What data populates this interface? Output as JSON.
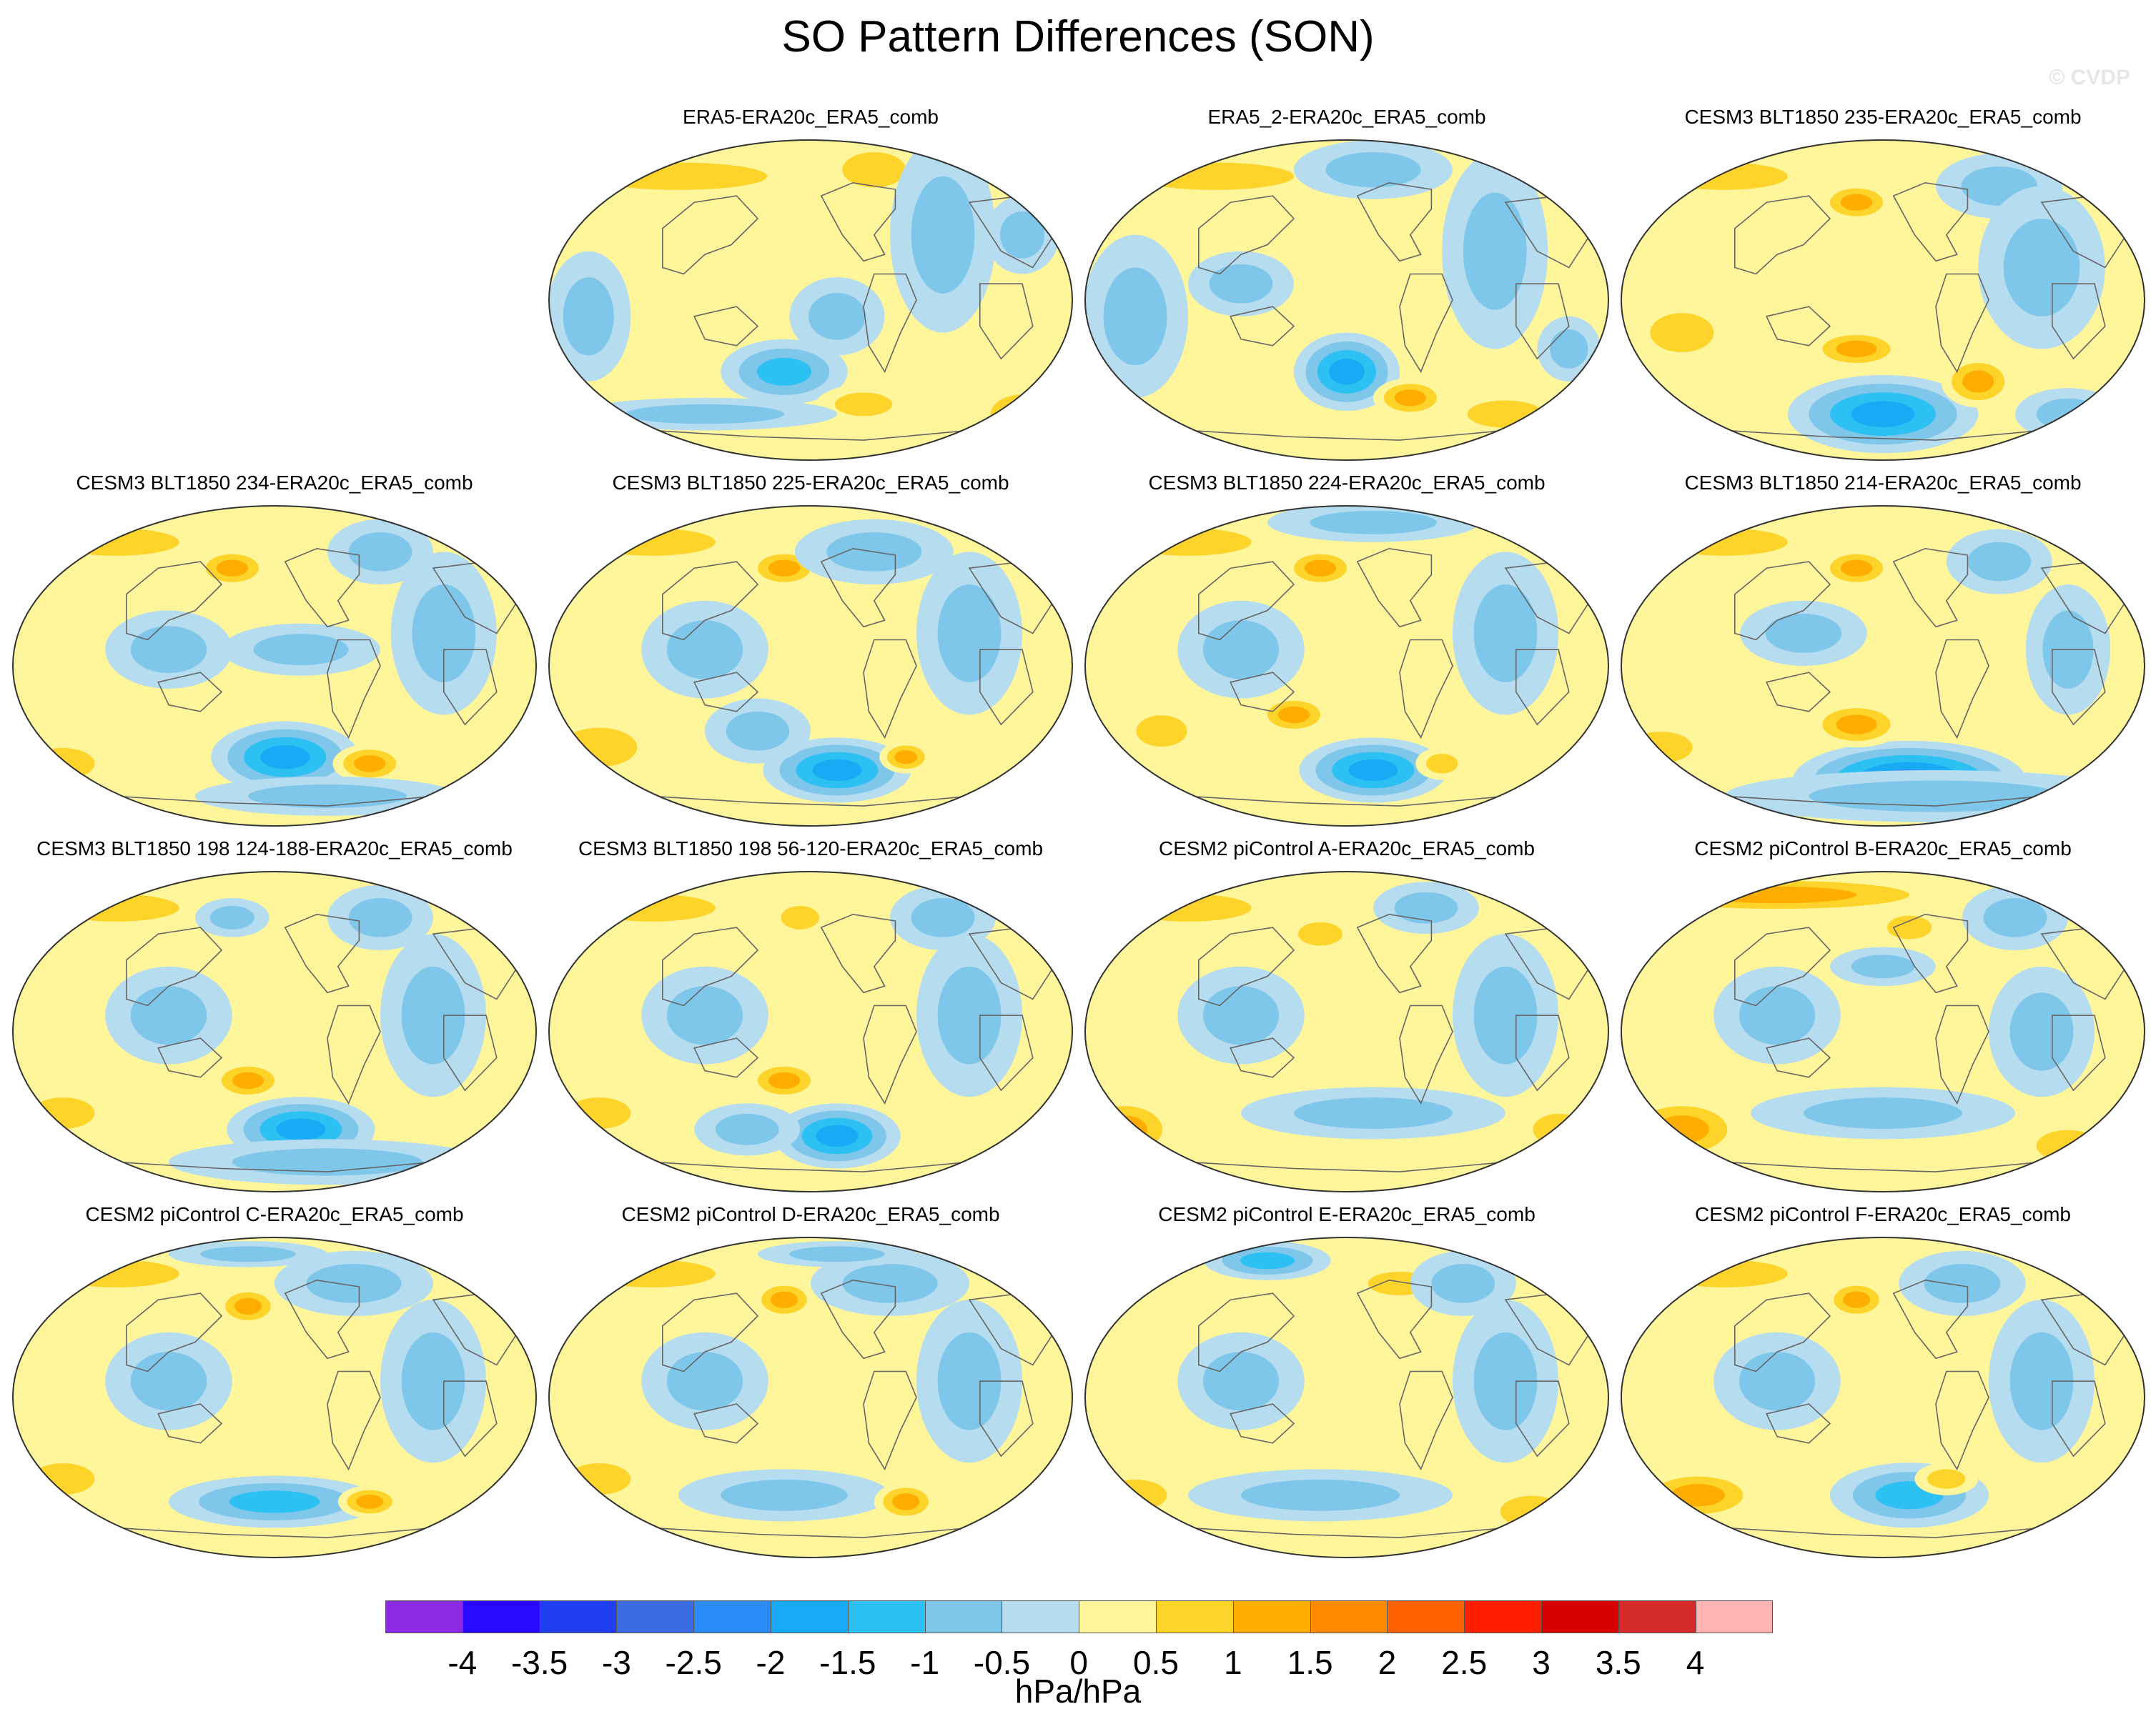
{
  "title": "SO Pattern Differences (SON)",
  "watermark": "© CVDP",
  "panels": [
    {
      "title": "ERA5-ERA20c_ERA5_comb",
      "blobs": [
        [
          0.25,
          0.12,
          0.28,
          0.07,
          1.0
        ],
        [
          0.62,
          0.1,
          0.1,
          0.09,
          1.0
        ],
        [
          0.55,
          0.55,
          0.09,
          0.12,
          -0.6
        ],
        [
          0.45,
          0.72,
          0.12,
          0.1,
          -1.2
        ],
        [
          0.6,
          0.82,
          0.09,
          0.06,
          1.0
        ],
        [
          0.75,
          0.3,
          0.1,
          0.3,
          -0.6
        ],
        [
          0.08,
          0.55,
          0.08,
          0.2,
          -0.6
        ],
        [
          0.9,
          0.85,
          0.1,
          0.1,
          1.0
        ],
        [
          0.3,
          0.85,
          0.25,
          0.05,
          -0.6
        ],
        [
          0.9,
          0.3,
          0.07,
          0.12,
          -0.6
        ]
      ]
    },
    {
      "title": "ERA5_2-ERA20c_ERA5_comb",
      "blobs": [
        [
          0.25,
          0.12,
          0.25,
          0.07,
          1.0
        ],
        [
          0.55,
          0.1,
          0.15,
          0.09,
          -0.8
        ],
        [
          0.5,
          0.72,
          0.1,
          0.12,
          -1.8
        ],
        [
          0.62,
          0.8,
          0.07,
          0.06,
          1.2
        ],
        [
          0.78,
          0.35,
          0.1,
          0.3,
          -0.6
        ],
        [
          0.1,
          0.55,
          0.1,
          0.25,
          -0.6
        ],
        [
          0.8,
          0.85,
          0.12,
          0.07,
          1.0
        ],
        [
          0.3,
          0.45,
          0.1,
          0.1,
          -0.6
        ],
        [
          0.92,
          0.65,
          0.06,
          0.1,
          -0.6
        ]
      ]
    },
    {
      "title": "CESM3 BLT1850 235-ERA20c_ERA5_comb",
      "blobs": [
        [
          0.2,
          0.12,
          0.2,
          0.07,
          1.0
        ],
        [
          0.45,
          0.2,
          0.07,
          0.06,
          1.2
        ],
        [
          0.72,
          0.15,
          0.12,
          0.1,
          -0.8
        ],
        [
          0.5,
          0.85,
          0.18,
          0.12,
          -1.8
        ],
        [
          0.45,
          0.65,
          0.09,
          0.06,
          1.2
        ],
        [
          0.68,
          0.75,
          0.07,
          0.08,
          1.2
        ],
        [
          0.12,
          0.6,
          0.1,
          0.1,
          1.0
        ],
        [
          0.8,
          0.4,
          0.12,
          0.25,
          -0.6
        ],
        [
          0.85,
          0.85,
          0.1,
          0.08,
          -0.6
        ]
      ]
    },
    {
      "title": "CESM3 BLT1850 234-ERA20c_ERA5_comb",
      "blobs": [
        [
          0.2,
          0.12,
          0.2,
          0.07,
          1.0
        ],
        [
          0.42,
          0.2,
          0.07,
          0.06,
          1.2
        ],
        [
          0.7,
          0.15,
          0.1,
          0.1,
          -0.8
        ],
        [
          0.52,
          0.78,
          0.14,
          0.11,
          -1.8
        ],
        [
          0.68,
          0.8,
          0.07,
          0.06,
          1.2
        ],
        [
          0.1,
          0.8,
          0.1,
          0.08,
          1.0
        ],
        [
          0.3,
          0.45,
          0.12,
          0.12,
          -0.6
        ],
        [
          0.82,
          0.4,
          0.1,
          0.25,
          -0.6
        ],
        [
          0.55,
          0.45,
          0.15,
          0.08,
          -0.6
        ],
        [
          0.6,
          0.9,
          0.25,
          0.06,
          -0.6
        ]
      ]
    },
    {
      "title": "CESM3 BLT1850 225-ERA20c_ERA5_comb",
      "blobs": [
        [
          0.2,
          0.12,
          0.2,
          0.07,
          1.0
        ],
        [
          0.45,
          0.2,
          0.07,
          0.06,
          1.2
        ],
        [
          0.62,
          0.15,
          0.15,
          0.1,
          -0.6
        ],
        [
          0.55,
          0.82,
          0.14,
          0.1,
          -1.8
        ],
        [
          0.68,
          0.78,
          0.05,
          0.05,
          1.2
        ],
        [
          0.1,
          0.75,
          0.12,
          0.1,
          1.0
        ],
        [
          0.3,
          0.45,
          0.12,
          0.15,
          -0.6
        ],
        [
          0.8,
          0.4,
          0.1,
          0.25,
          -0.6
        ],
        [
          0.4,
          0.7,
          0.1,
          0.1,
          -0.6
        ]
      ]
    },
    {
      "title": "CESM3 BLT1850 224-ERA20c_ERA5_comb",
      "blobs": [
        [
          0.2,
          0.12,
          0.2,
          0.07,
          1.0
        ],
        [
          0.45,
          0.2,
          0.07,
          0.06,
          1.2
        ],
        [
          0.55,
          0.06,
          0.2,
          0.06,
          -0.8
        ],
        [
          0.55,
          0.82,
          0.14,
          0.1,
          -1.8
        ],
        [
          0.4,
          0.65,
          0.07,
          0.06,
          1.2
        ],
        [
          0.68,
          0.8,
          0.05,
          0.05,
          1.0
        ],
        [
          0.15,
          0.7,
          0.08,
          0.08,
          1.0
        ],
        [
          0.3,
          0.45,
          0.12,
          0.15,
          -0.6
        ],
        [
          0.8,
          0.4,
          0.1,
          0.25,
          -0.6
        ]
      ]
    },
    {
      "title": "CESM3 BLT1850 214-ERA20c_ERA5_comb",
      "blobs": [
        [
          0.2,
          0.12,
          0.2,
          0.07,
          1.0
        ],
        [
          0.45,
          0.2,
          0.07,
          0.06,
          1.2
        ],
        [
          0.72,
          0.18,
          0.1,
          0.1,
          -0.8
        ],
        [
          0.55,
          0.85,
          0.22,
          0.12,
          -2.2
        ],
        [
          0.45,
          0.68,
          0.09,
          0.07,
          1.5
        ],
        [
          0.08,
          0.75,
          0.1,
          0.08,
          1.0
        ],
        [
          0.6,
          0.9,
          0.4,
          0.08,
          -0.6
        ],
        [
          0.85,
          0.45,
          0.08,
          0.2,
          -0.6
        ],
        [
          0.35,
          0.4,
          0.12,
          0.1,
          -0.6
        ]
      ]
    },
    {
      "title": "CESM3 BLT1850 198 124-188-ERA20c_ERA5_comb",
      "blobs": [
        [
          0.2,
          0.12,
          0.2,
          0.07,
          1.0
        ],
        [
          0.42,
          0.15,
          0.07,
          0.06,
          -0.6
        ],
        [
          0.7,
          0.15,
          0.1,
          0.1,
          -0.6
        ],
        [
          0.55,
          0.8,
          0.14,
          0.1,
          -1.8
        ],
        [
          0.45,
          0.65,
          0.07,
          0.06,
          1.2
        ],
        [
          0.1,
          0.75,
          0.1,
          0.08,
          1.0
        ],
        [
          0.3,
          0.45,
          0.12,
          0.15,
          -0.6
        ],
        [
          0.8,
          0.45,
          0.1,
          0.25,
          -0.6
        ],
        [
          0.6,
          0.9,
          0.3,
          0.07,
          -0.6
        ]
      ]
    },
    {
      "title": "CESM3 BLT1850 198 56-120-ERA20c_ERA5_comb",
      "blobs": [
        [
          0.2,
          0.12,
          0.2,
          0.07,
          1.0
        ],
        [
          0.48,
          0.15,
          0.06,
          0.06,
          1.0
        ],
        [
          0.75,
          0.15,
          0.1,
          0.1,
          -0.8
        ],
        [
          0.55,
          0.82,
          0.12,
          0.1,
          -2.0
        ],
        [
          0.45,
          0.65,
          0.07,
          0.06,
          1.5
        ],
        [
          0.1,
          0.75,
          0.1,
          0.08,
          1.0
        ],
        [
          0.3,
          0.45,
          0.12,
          0.15,
          -0.6
        ],
        [
          0.8,
          0.45,
          0.1,
          0.25,
          -0.6
        ],
        [
          0.38,
          0.8,
          0.1,
          0.08,
          -0.6
        ]
      ]
    },
    {
      "title": "CESM2 piControl A-ERA20c_ERA5_comb",
      "blobs": [
        [
          0.2,
          0.12,
          0.2,
          0.07,
          1.0
        ],
        [
          0.45,
          0.2,
          0.07,
          0.06,
          1.0
        ],
        [
          0.65,
          0.12,
          0.1,
          0.08,
          -0.6
        ],
        [
          0.55,
          0.75,
          0.25,
          0.08,
          -0.8
        ],
        [
          0.08,
          0.8,
          0.1,
          0.1,
          1.2
        ],
        [
          0.3,
          0.45,
          0.12,
          0.15,
          -0.6
        ],
        [
          0.8,
          0.45,
          0.1,
          0.25,
          -0.6
        ],
        [
          0.9,
          0.8,
          0.08,
          0.08,
          1.0
        ]
      ]
    },
    {
      "title": "CESM2 piControl B-ERA20c_ERA5_comb",
      "blobs": [
        [
          0.3,
          0.08,
          0.35,
          0.06,
          1.2
        ],
        [
          0.55,
          0.18,
          0.07,
          0.06,
          1.0
        ],
        [
          0.75,
          0.15,
          0.1,
          0.1,
          -0.6
        ],
        [
          0.5,
          0.75,
          0.25,
          0.08,
          -0.8
        ],
        [
          0.12,
          0.8,
          0.12,
          0.1,
          1.5
        ],
        [
          0.3,
          0.45,
          0.12,
          0.15,
          -0.6
        ],
        [
          0.8,
          0.5,
          0.1,
          0.2,
          -0.6
        ],
        [
          0.85,
          0.85,
          0.1,
          0.08,
          1.0
        ],
        [
          0.5,
          0.3,
          0.1,
          0.06,
          -0.6
        ]
      ]
    },
    {
      "title": "CESM2 piControl C-ERA20c_ERA5_comb",
      "blobs": [
        [
          0.2,
          0.12,
          0.2,
          0.07,
          1.0
        ],
        [
          0.45,
          0.22,
          0.06,
          0.06,
          1.2
        ],
        [
          0.65,
          0.15,
          0.15,
          0.1,
          -0.6
        ],
        [
          0.5,
          0.82,
          0.2,
          0.08,
          -1.5
        ],
        [
          0.68,
          0.82,
          0.06,
          0.05,
          1.2
        ],
        [
          0.1,
          0.75,
          0.1,
          0.08,
          1.0
        ],
        [
          0.3,
          0.45,
          0.12,
          0.15,
          -0.6
        ],
        [
          0.8,
          0.45,
          0.1,
          0.25,
          -0.6
        ],
        [
          0.45,
          0.06,
          0.15,
          0.04,
          -0.6
        ]
      ]
    },
    {
      "title": "CESM2 piControl D-ERA20c_ERA5_comb",
      "blobs": [
        [
          0.2,
          0.12,
          0.2,
          0.07,
          1.0
        ],
        [
          0.45,
          0.2,
          0.06,
          0.06,
          1.2
        ],
        [
          0.65,
          0.15,
          0.15,
          0.1,
          -0.6
        ],
        [
          0.45,
          0.8,
          0.2,
          0.08,
          -0.8
        ],
        [
          0.68,
          0.82,
          0.06,
          0.06,
          1.2
        ],
        [
          0.1,
          0.75,
          0.1,
          0.08,
          1.0
        ],
        [
          0.3,
          0.45,
          0.12,
          0.15,
          -0.6
        ],
        [
          0.8,
          0.45,
          0.1,
          0.25,
          -0.6
        ],
        [
          0.55,
          0.06,
          0.15,
          0.04,
          -0.6
        ]
      ]
    },
    {
      "title": "CESM2 piControl E-ERA20c_ERA5_comb",
      "blobs": [
        [
          0.35,
          0.08,
          0.12,
          0.06,
          -1.2
        ],
        [
          0.6,
          0.15,
          0.1,
          0.06,
          1.0
        ],
        [
          0.72,
          0.15,
          0.1,
          0.1,
          -0.6
        ],
        [
          0.45,
          0.8,
          0.25,
          0.08,
          -1.0
        ],
        [
          0.1,
          0.8,
          0.1,
          0.08,
          1.0
        ],
        [
          0.3,
          0.45,
          0.12,
          0.15,
          -0.6
        ],
        [
          0.8,
          0.45,
          0.1,
          0.25,
          -0.6
        ],
        [
          0.85,
          0.85,
          0.1,
          0.08,
          1.0
        ]
      ]
    },
    {
      "title": "CESM2 piControl F-ERA20c_ERA5_comb",
      "blobs": [
        [
          0.2,
          0.12,
          0.2,
          0.07,
          1.0
        ],
        [
          0.45,
          0.2,
          0.06,
          0.06,
          1.2
        ],
        [
          0.65,
          0.15,
          0.12,
          0.1,
          -0.6
        ],
        [
          0.55,
          0.8,
          0.15,
          0.1,
          -1.2
        ],
        [
          0.15,
          0.8,
          0.12,
          0.08,
          1.5
        ],
        [
          0.3,
          0.45,
          0.12,
          0.15,
          -0.6
        ],
        [
          0.8,
          0.45,
          0.1,
          0.25,
          -0.6
        ],
        [
          0.62,
          0.75,
          0.06,
          0.05,
          1.0
        ]
      ]
    }
  ],
  "colorbar": {
    "levels": [
      "-4",
      "-3.5",
      "-3",
      "-2.5",
      "-2",
      "-1.5",
      "-1",
      "-0.5",
      "0",
      "0.5",
      "1",
      "1.5",
      "2",
      "2.5",
      "3",
      "3.5",
      "4"
    ],
    "colors": [
      "#8a2be2",
      "#2a0aff",
      "#1f3ff0",
      "#3a6be0",
      "#2b8bf6",
      "#18aaf5",
      "#2cc1f2",
      "#7ec6ea",
      "#b6dcf0",
      "#fff59a",
      "#ffd42a",
      "#ffae00",
      "#ff8a00",
      "#ff6300",
      "#ff1e00",
      "#d70000",
      "#d52a2a",
      "#ffb3b3"
    ],
    "units": "hPa/hPa"
  }
}
